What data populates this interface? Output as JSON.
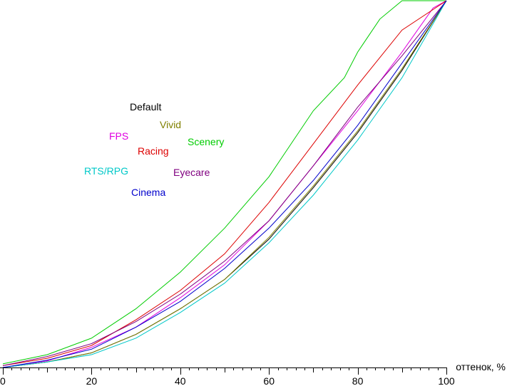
{
  "chart_data": {
    "type": "line",
    "title": "",
    "xlabel": "оттенок, %",
    "ylabel": "",
    "xlim": [
      0,
      100
    ],
    "ylim": [
      0,
      100
    ],
    "x_ticks": [
      "0",
      "20",
      "40",
      "60",
      "80",
      "100"
    ],
    "grid": false,
    "legend_position": "upper-left inside plot",
    "series": [
      {
        "name": "Default",
        "color": "#000000",
        "x": [
          0,
          10,
          20,
          30,
          40,
          50,
          60,
          70,
          80,
          90,
          100
        ],
        "y": [
          0,
          1.5,
          4,
          9,
          16,
          24,
          35,
          49,
          64,
          81,
          100
        ]
      },
      {
        "name": "Vivid",
        "color": "#808000",
        "x": [
          0,
          10,
          20,
          30,
          40,
          50,
          60,
          70,
          80,
          90,
          100
        ],
        "y": [
          0,
          1.5,
          4,
          9,
          16,
          24,
          35.5,
          49.5,
          64.5,
          81.5,
          100
        ]
      },
      {
        "name": "Scenery",
        "color": "#00cc00",
        "x": [
          0,
          10,
          20,
          30,
          40,
          50,
          60,
          70,
          77,
          80,
          85,
          90,
          100
        ],
        "y": [
          1,
          3.5,
          8,
          16,
          26,
          38,
          52,
          70,
          79,
          86,
          95,
          100,
          100
        ]
      },
      {
        "name": "FPS",
        "color": "#e000e0",
        "x": [
          0,
          10,
          20,
          30,
          40,
          50,
          60,
          70,
          80,
          90,
          97,
          100
        ],
        "y": [
          0,
          1.8,
          5.5,
          11,
          19,
          28,
          40,
          55,
          70,
          86,
          98,
          100
        ]
      },
      {
        "name": "Racing",
        "color": "#dd0000",
        "x": [
          0,
          10,
          20,
          30,
          40,
          50,
          60,
          70,
          80,
          90,
          100
        ],
        "y": [
          0.5,
          2.5,
          6,
          13,
          21,
          31,
          45,
          61,
          77,
          92,
          100
        ]
      },
      {
        "name": "RTS/RPG",
        "color": "#00c8c8",
        "x": [
          0,
          10,
          20,
          30,
          40,
          50,
          60,
          70,
          80,
          90,
          100
        ],
        "y": [
          0,
          1.5,
          3.5,
          8,
          15,
          23,
          34,
          47,
          62,
          79,
          100
        ]
      },
      {
        "name": "Eyecare",
        "color": "#800080",
        "x": [
          0,
          10,
          20,
          30,
          40,
          50,
          60,
          70,
          80,
          90,
          96,
          100
        ],
        "y": [
          0.5,
          3,
          6.5,
          12.5,
          20,
          29,
          40,
          55,
          71,
          85,
          94,
          100
        ]
      },
      {
        "name": "Cinema",
        "color": "#0000cc",
        "x": [
          0,
          10,
          20,
          30,
          40,
          50,
          60,
          70,
          80,
          90,
          100
        ],
        "y": [
          0,
          2,
          5,
          11,
          18,
          27,
          38,
          51,
          66,
          83,
          100
        ]
      }
    ],
    "legend": [
      {
        "name": "Default",
        "color": "#000000"
      },
      {
        "name": "Vivid",
        "color": "#808000"
      },
      {
        "name": "FPS",
        "color": "#e000e0"
      },
      {
        "name": "Scenery",
        "color": "#00cc00"
      },
      {
        "name": "Racing",
        "color": "#dd0000"
      },
      {
        "name": "RTS/RPG",
        "color": "#00c8c8"
      },
      {
        "name": "Eyecare",
        "color": "#800080"
      },
      {
        "name": "Cinema",
        "color": "#0000cc"
      }
    ]
  }
}
